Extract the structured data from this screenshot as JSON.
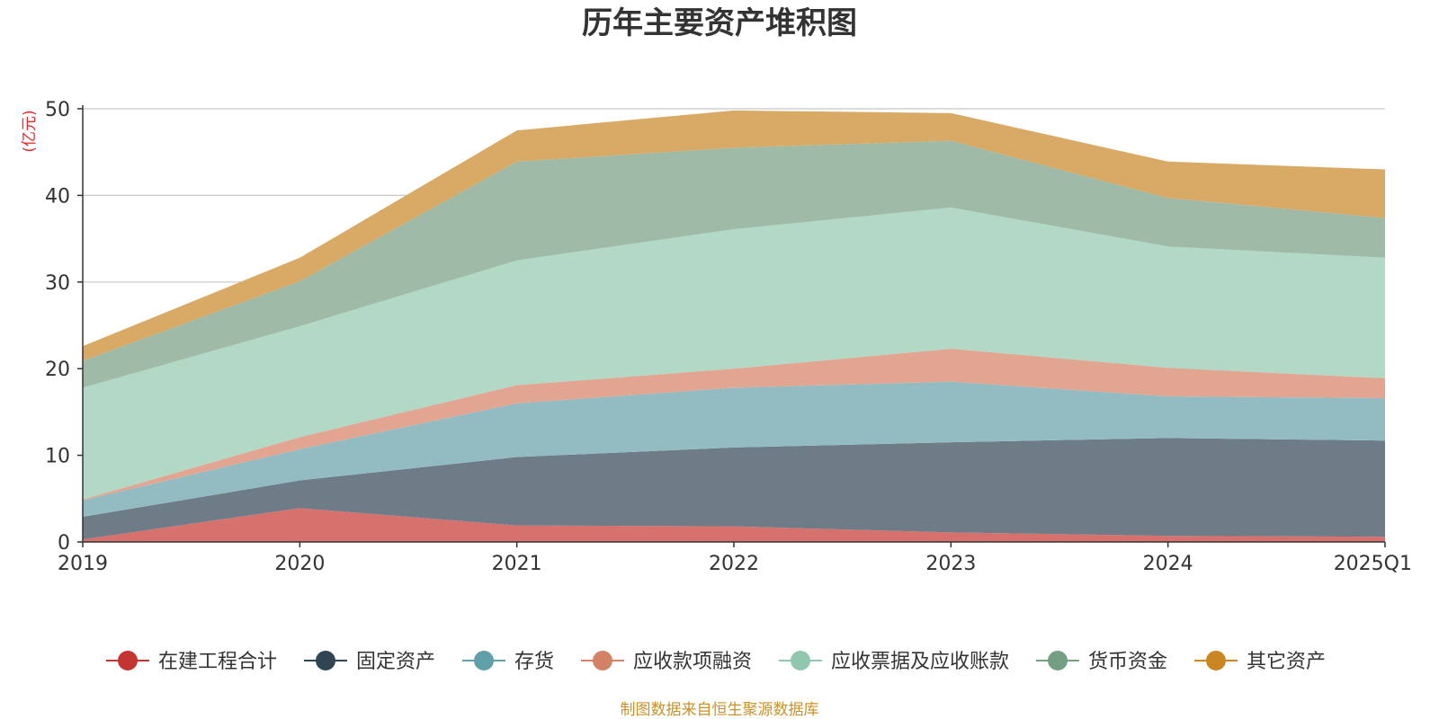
{
  "chart_data": {
    "type": "area",
    "stacked": true,
    "title": "历年主要资产堆积图",
    "unit_label": "(亿元)",
    "x": [
      "2019",
      "2020",
      "2021",
      "2022",
      "2023",
      "2024",
      "2025Q1"
    ],
    "ylim": [
      0,
      50
    ],
    "yticks": [
      0,
      10,
      20,
      30,
      40,
      50
    ],
    "grid": true,
    "legend_position": "bottom",
    "series": [
      {
        "name": "在建工程合计",
        "color": "#c23531",
        "fill": "#d6716d",
        "values": [
          0.3,
          3.9,
          1.9,
          1.8,
          1.1,
          0.7,
          0.6
        ]
      },
      {
        "name": "固定资产",
        "color": "#2f4554",
        "fill": "#6e7c87",
        "values": [
          2.6,
          3.2,
          7.9,
          9.1,
          10.4,
          11.3,
          11.1
        ]
      },
      {
        "name": "存货",
        "color": "#61a0a8",
        "fill": "#92bcc2",
        "values": [
          1.9,
          3.6,
          6.2,
          6.9,
          7.0,
          4.8,
          4.9
        ]
      },
      {
        "name": "应收款项融资",
        "color": "#d48265",
        "fill": "#e2a592",
        "values": [
          0.1,
          1.4,
          2.1,
          2.2,
          3.8,
          3.3,
          2.3
        ]
      },
      {
        "name": "应收票据及应收账款",
        "color": "#91c7ae",
        "fill": "#b1d9c6",
        "values": [
          12.9,
          12.8,
          14.4,
          16.1,
          16.3,
          14.0,
          13.9
        ]
      },
      {
        "name": "货币资金",
        "color": "#749f83",
        "fill": "#9fbaa7",
        "values": [
          3.1,
          5.2,
          11.4,
          9.4,
          7.7,
          5.6,
          4.6
        ]
      },
      {
        "name": "其它资产",
        "color": "#ca8622",
        "fill": "#d9aa66",
        "values": [
          1.7,
          2.7,
          3.6,
          4.3,
          3.2,
          4.2,
          5.6
        ]
      }
    ]
  },
  "footer": {
    "source": "制图数据来自恒生聚源数据库"
  }
}
